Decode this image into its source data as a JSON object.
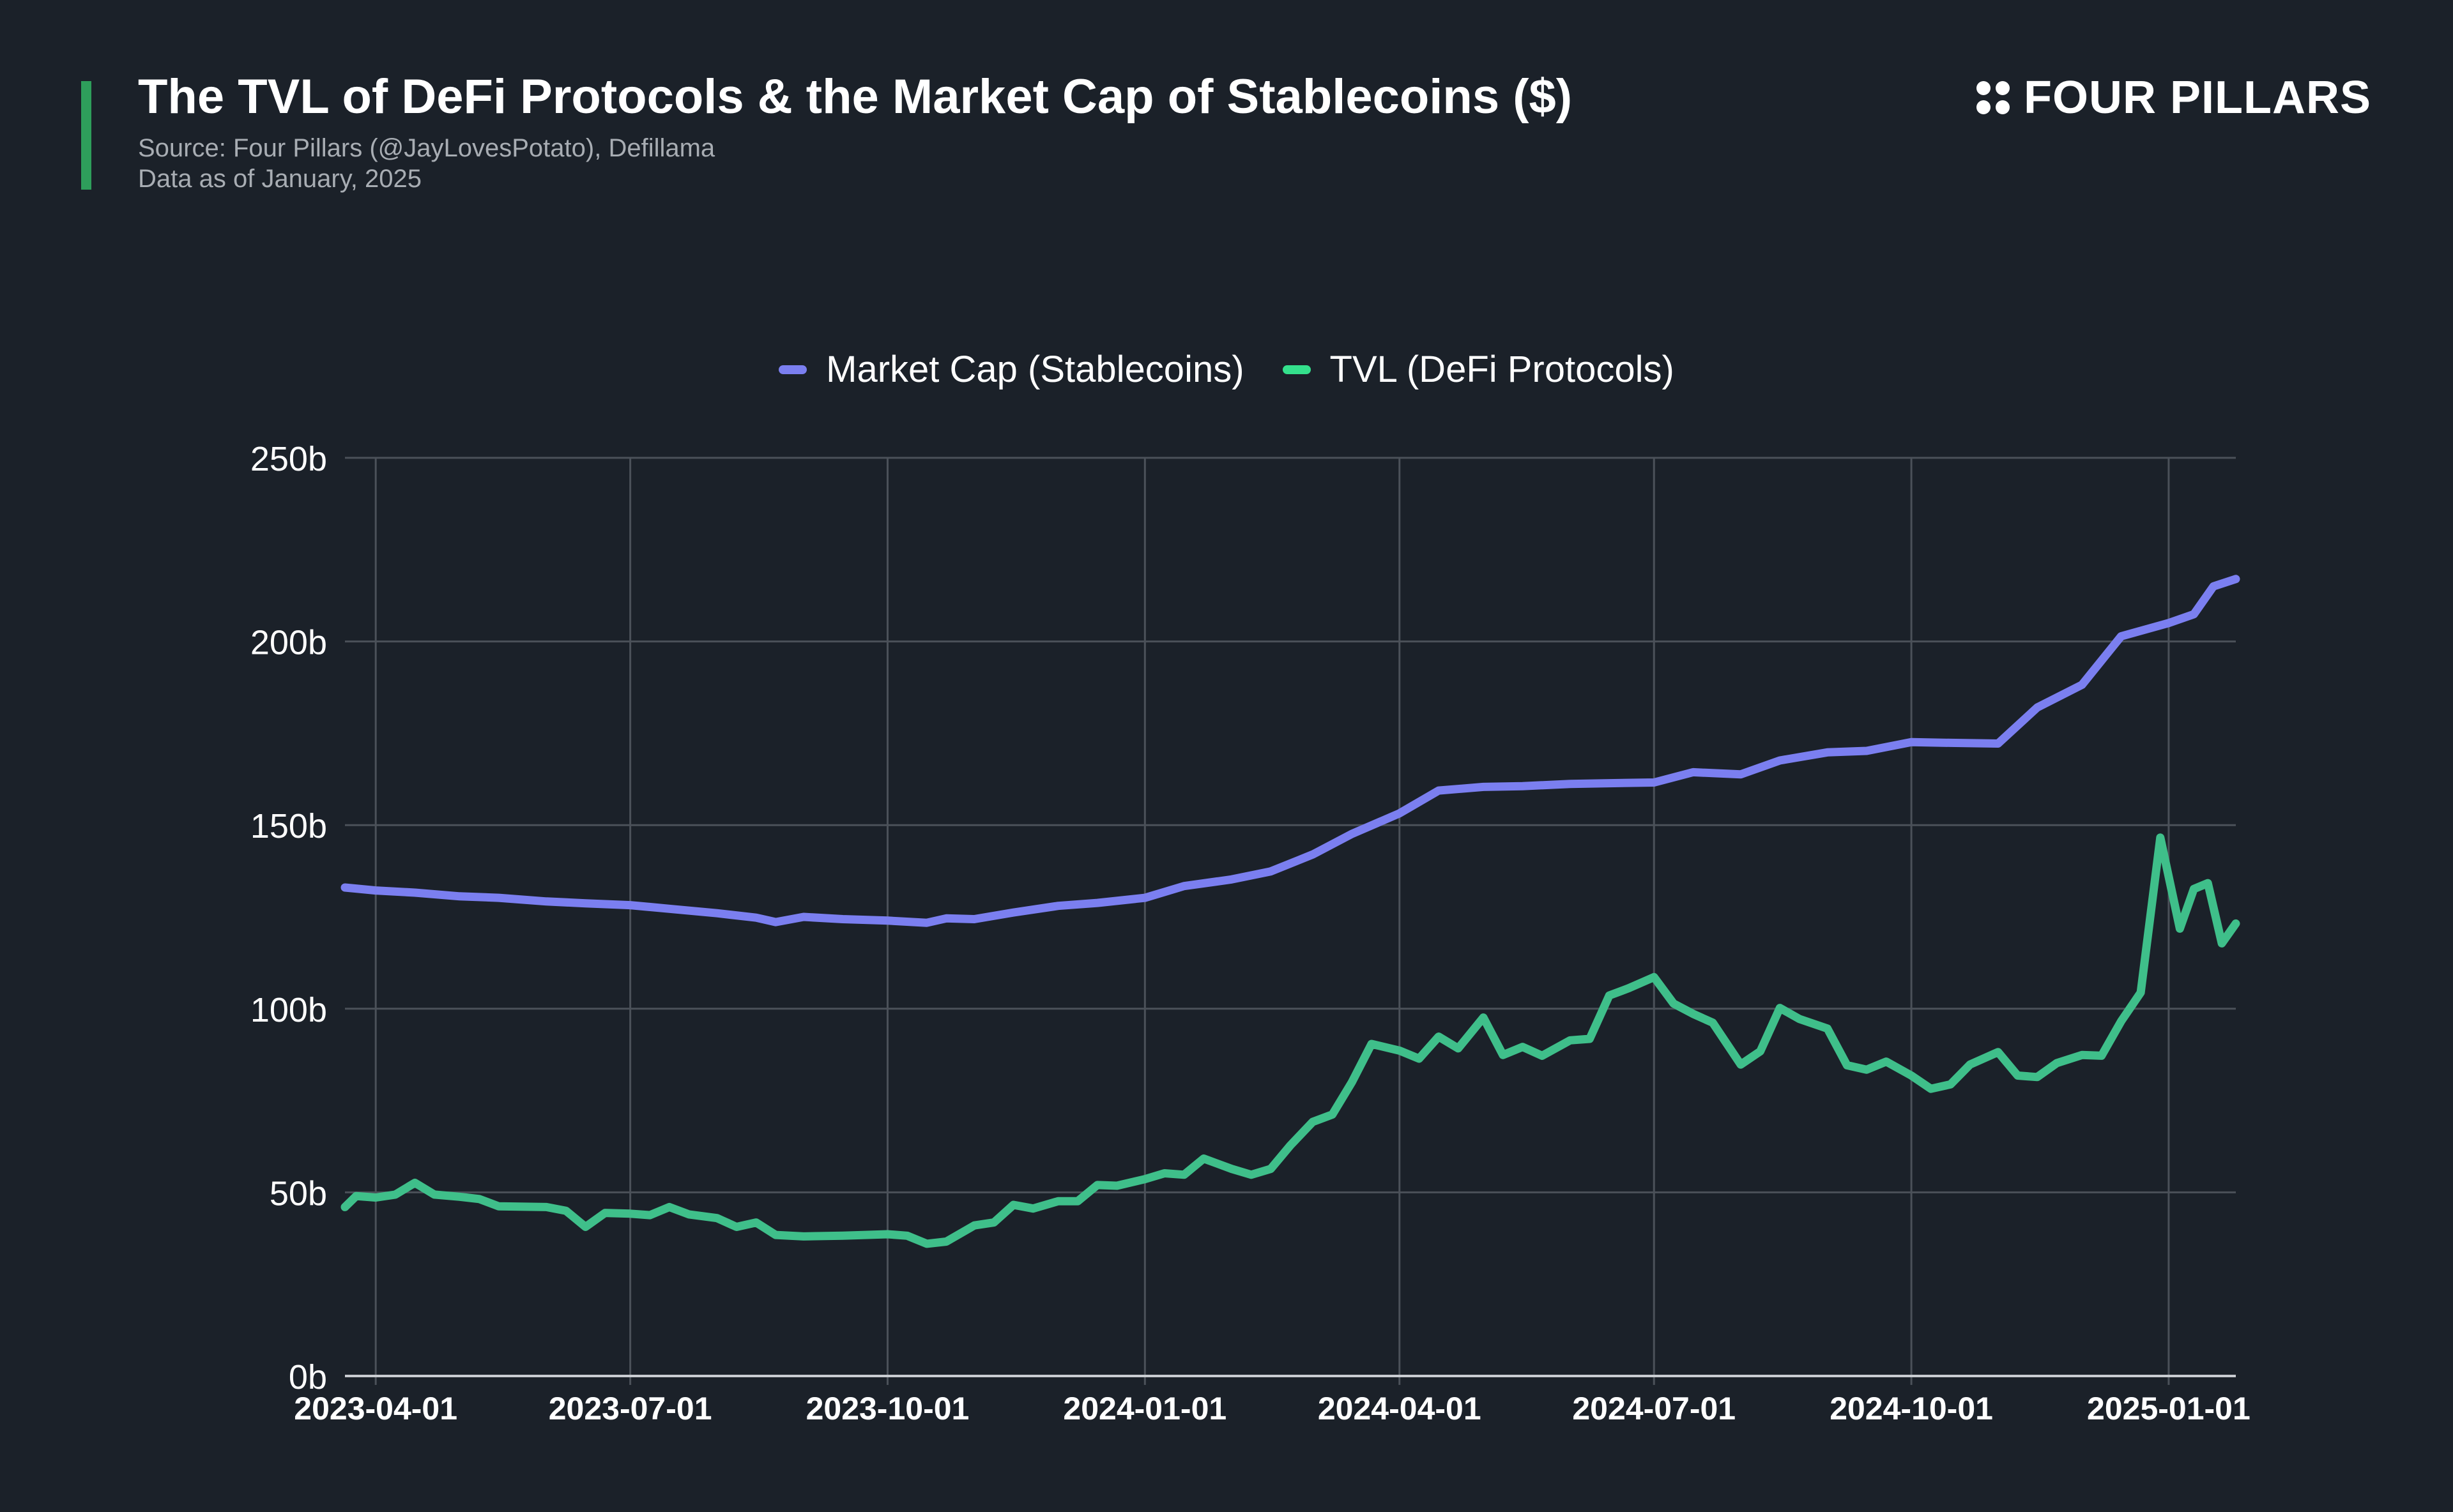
{
  "header": {
    "title": "The TVL of DeFi Protocols & the Market Cap of Stablecoins ($)",
    "source": "Source: Four Pillars (@JayLovesPotato), Defillama",
    "data_as_of": "Data as of January, 2025"
  },
  "brand": {
    "name": "FOUR PILLARS",
    "icon": "four-dots-icon"
  },
  "colors": {
    "background": "#1b2129",
    "accent": "#2e9e5b",
    "market_cap": "#7b7ff0",
    "tvl": "#3fbf8a",
    "tvl_legend": "#34e08c",
    "grid": "#4b5159"
  },
  "chart_data": {
    "type": "line",
    "title": "The TVL of DeFi Protocols & the Market Cap of Stablecoins ($)",
    "xlabel": "",
    "ylabel": "",
    "ylim": [
      0,
      250
    ],
    "y_unit": "b",
    "y_ticks": [
      0,
      50,
      100,
      150,
      200,
      250
    ],
    "y_tick_labels": [
      "0b",
      "50b",
      "100b",
      "150b",
      "200b",
      "250b"
    ],
    "x_ticks": [
      "2023-04-01",
      "2023-07-01",
      "2023-10-01",
      "2024-01-01",
      "2024-04-01",
      "2024-07-01",
      "2024-10-01",
      "2025-01-01"
    ],
    "xlim": [
      "2023-03-21",
      "2025-01-25"
    ],
    "legend_position": "top-center",
    "grid": true,
    "series": [
      {
        "name": "Market Cap (Stablecoins)",
        "color": "#7b7ff0",
        "points": [
          [
            "2023-03-21",
            133.0
          ],
          [
            "2023-04-01",
            132.2
          ],
          [
            "2023-04-15",
            131.6
          ],
          [
            "2023-05-01",
            130.6
          ],
          [
            "2023-05-15",
            130.2
          ],
          [
            "2023-06-01",
            129.2
          ],
          [
            "2023-06-15",
            128.7
          ],
          [
            "2023-07-01",
            128.2
          ],
          [
            "2023-07-15",
            127.2
          ],
          [
            "2023-08-01",
            126.0
          ],
          [
            "2023-08-15",
            124.8
          ],
          [
            "2023-08-22",
            123.6
          ],
          [
            "2023-09-01",
            125.0
          ],
          [
            "2023-09-15",
            124.4
          ],
          [
            "2023-10-01",
            124.0
          ],
          [
            "2023-10-15",
            123.4
          ],
          [
            "2023-10-22",
            124.6
          ],
          [
            "2023-11-01",
            124.4
          ],
          [
            "2023-11-15",
            126.2
          ],
          [
            "2023-12-01",
            128.0
          ],
          [
            "2023-12-15",
            128.8
          ],
          [
            "2024-01-01",
            130.2
          ],
          [
            "2024-01-15",
            133.4
          ],
          [
            "2024-02-01",
            135.2
          ],
          [
            "2024-02-15",
            137.4
          ],
          [
            "2024-03-01",
            142.0
          ],
          [
            "2024-03-15",
            147.6
          ],
          [
            "2024-04-01",
            153.2
          ],
          [
            "2024-04-15",
            159.4
          ],
          [
            "2024-05-01",
            160.4
          ],
          [
            "2024-05-15",
            160.6
          ],
          [
            "2024-06-01",
            161.2
          ],
          [
            "2024-06-15",
            161.4
          ],
          [
            "2024-07-01",
            161.6
          ],
          [
            "2024-07-15",
            164.4
          ],
          [
            "2024-08-01",
            163.8
          ],
          [
            "2024-08-15",
            167.6
          ],
          [
            "2024-09-01",
            169.8
          ],
          [
            "2024-09-15",
            170.2
          ],
          [
            "2024-10-01",
            172.6
          ],
          [
            "2024-10-15",
            172.4
          ],
          [
            "2024-11-01",
            172.2
          ],
          [
            "2024-11-15",
            182.0
          ],
          [
            "2024-12-01",
            188.2
          ],
          [
            "2024-12-15",
            201.4
          ],
          [
            "2025-01-01",
            205.0
          ],
          [
            "2025-01-10",
            207.4
          ],
          [
            "2025-01-17",
            215.0
          ],
          [
            "2025-01-25",
            217.0
          ]
        ]
      },
      {
        "name": "TVL (DeFi Protocols)",
        "color": "#3fbf8a",
        "points": [
          [
            "2023-03-21",
            46.0
          ],
          [
            "2023-03-25",
            49.0
          ],
          [
            "2023-04-01",
            48.6
          ],
          [
            "2023-04-08",
            49.4
          ],
          [
            "2023-04-15",
            52.6
          ],
          [
            "2023-04-22",
            49.4
          ],
          [
            "2023-05-01",
            48.8
          ],
          [
            "2023-05-08",
            48.2
          ],
          [
            "2023-05-15",
            46.2
          ],
          [
            "2023-06-01",
            46.0
          ],
          [
            "2023-06-08",
            45.0
          ],
          [
            "2023-06-15",
            40.6
          ],
          [
            "2023-06-22",
            44.4
          ],
          [
            "2023-07-01",
            44.2
          ],
          [
            "2023-07-08",
            43.8
          ],
          [
            "2023-07-15",
            46.0
          ],
          [
            "2023-07-22",
            44.0
          ],
          [
            "2023-08-01",
            43.0
          ],
          [
            "2023-08-08",
            40.6
          ],
          [
            "2023-08-15",
            41.8
          ],
          [
            "2023-08-22",
            38.4
          ],
          [
            "2023-09-01",
            38.0
          ],
          [
            "2023-09-15",
            38.2
          ],
          [
            "2023-10-01",
            38.6
          ],
          [
            "2023-10-08",
            38.2
          ],
          [
            "2023-10-15",
            36.0
          ],
          [
            "2023-10-22",
            36.6
          ],
          [
            "2023-11-01",
            41.0
          ],
          [
            "2023-11-08",
            41.8
          ],
          [
            "2023-11-15",
            46.6
          ],
          [
            "2023-11-22",
            45.6
          ],
          [
            "2023-12-01",
            47.6
          ],
          [
            "2023-12-08",
            47.6
          ],
          [
            "2023-12-15",
            52.0
          ],
          [
            "2023-12-22",
            51.8
          ],
          [
            "2024-01-01",
            53.6
          ],
          [
            "2024-01-08",
            55.2
          ],
          [
            "2024-01-15",
            54.8
          ],
          [
            "2024-01-22",
            59.2
          ],
          [
            "2024-02-01",
            56.4
          ],
          [
            "2024-02-08",
            54.8
          ],
          [
            "2024-02-15",
            56.4
          ],
          [
            "2024-02-22",
            62.8
          ],
          [
            "2024-03-01",
            69.2
          ],
          [
            "2024-03-08",
            71.2
          ],
          [
            "2024-03-15",
            80.0
          ],
          [
            "2024-03-22",
            90.4
          ],
          [
            "2024-04-01",
            88.6
          ],
          [
            "2024-04-08",
            86.4
          ],
          [
            "2024-04-15",
            92.4
          ],
          [
            "2024-04-22",
            89.2
          ],
          [
            "2024-05-01",
            97.6
          ],
          [
            "2024-05-08",
            87.4
          ],
          [
            "2024-05-15",
            89.6
          ],
          [
            "2024-05-22",
            87.2
          ],
          [
            "2024-06-01",
            91.4
          ],
          [
            "2024-06-08",
            91.8
          ],
          [
            "2024-06-15",
            103.6
          ],
          [
            "2024-06-22",
            105.6
          ],
          [
            "2024-07-01",
            108.6
          ],
          [
            "2024-07-08",
            101.4
          ],
          [
            "2024-07-15",
            98.6
          ],
          [
            "2024-07-22",
            96.2
          ],
          [
            "2024-08-01",
            84.8
          ],
          [
            "2024-08-08",
            88.4
          ],
          [
            "2024-08-15",
            100.2
          ],
          [
            "2024-08-22",
            97.2
          ],
          [
            "2024-09-01",
            94.6
          ],
          [
            "2024-09-08",
            84.6
          ],
          [
            "2024-09-15",
            83.4
          ],
          [
            "2024-09-22",
            85.6
          ],
          [
            "2024-10-01",
            81.8
          ],
          [
            "2024-10-08",
            78.2
          ],
          [
            "2024-10-15",
            79.4
          ],
          [
            "2024-10-22",
            84.8
          ],
          [
            "2024-11-01",
            88.2
          ],
          [
            "2024-11-08",
            81.8
          ],
          [
            "2024-11-15",
            81.4
          ],
          [
            "2024-11-22",
            85.2
          ],
          [
            "2024-12-01",
            87.4
          ],
          [
            "2024-12-08",
            87.2
          ],
          [
            "2024-12-15",
            96.6
          ],
          [
            "2024-12-22",
            104.4
          ],
          [
            "2024-12-29",
            146.6
          ],
          [
            "2025-01-05",
            121.8
          ],
          [
            "2025-01-10",
            132.6
          ],
          [
            "2025-01-15",
            134.2
          ],
          [
            "2025-01-20",
            117.8
          ],
          [
            "2025-01-25",
            123.2
          ]
        ]
      }
    ]
  }
}
